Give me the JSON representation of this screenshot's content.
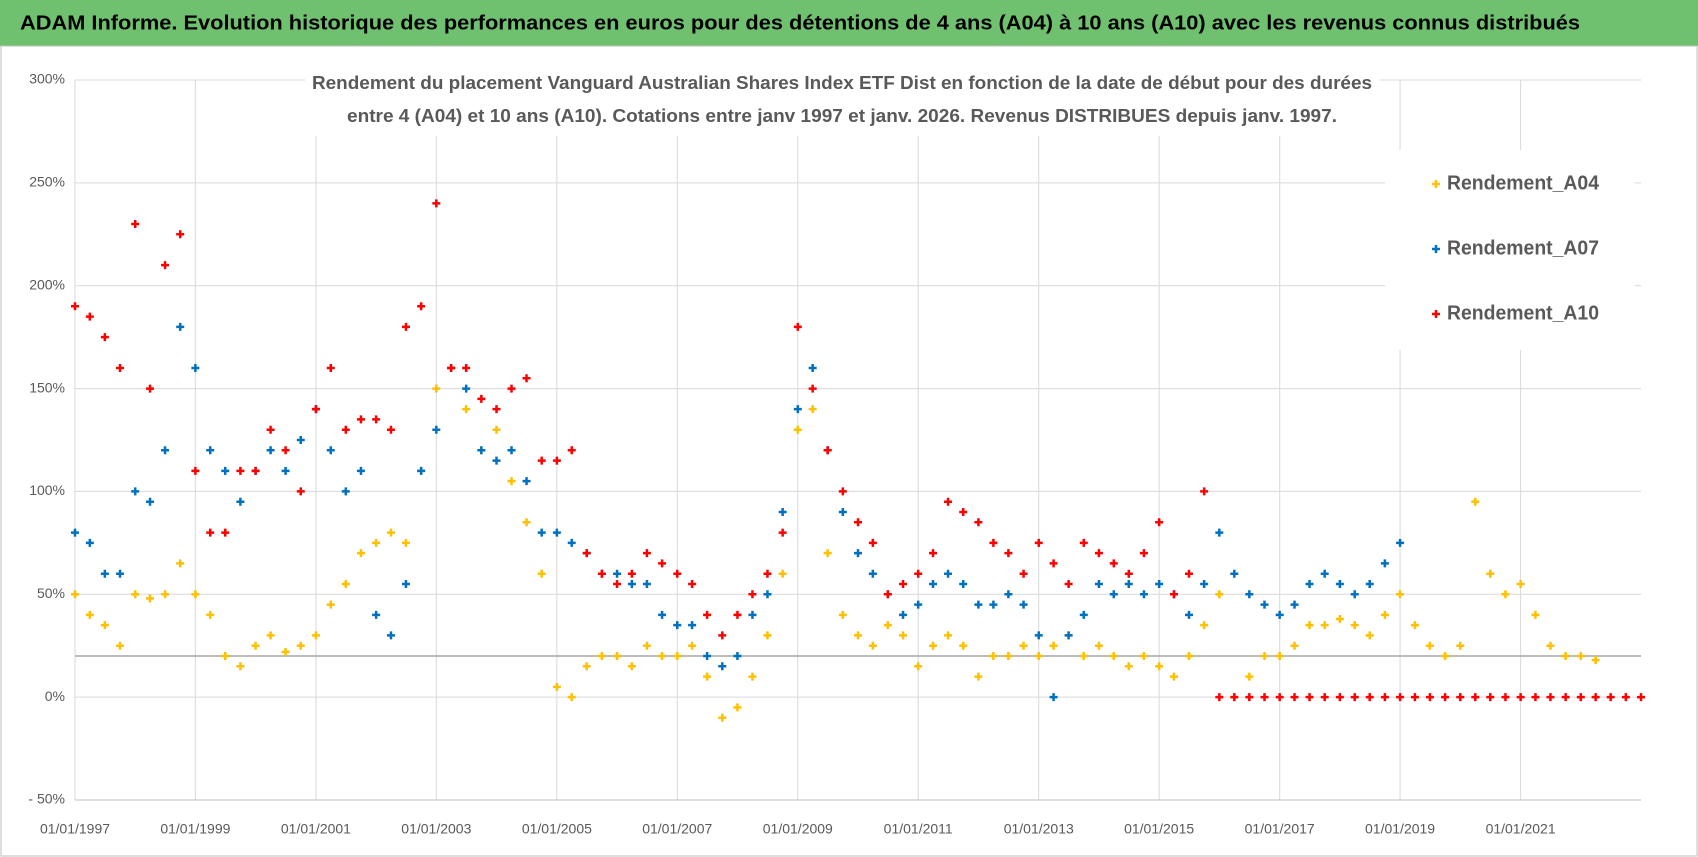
{
  "header": {
    "title": "ADAM Informe. Evolution historique des performances en euros pour des détentions de 4 ans (A04) à 10 ans (A10) avec les revenus connus distribués"
  },
  "chart_data": {
    "type": "scatter",
    "title": [
      "Rendement du placement Vanguard Australian Shares Index ETF Dist en fonction de la date de début pour des durées",
      "entre 4 (A04) et 10 ans (A10).  Cotations entre janv 1997 et janv. 2026. Revenus DISTRIBUES depuis janv. 1997."
    ],
    "x": [
      "1997-01-01",
      "1997-04-01",
      "1997-07-01",
      "1997-10-01",
      "1998-01-01",
      "1998-04-01",
      "1998-07-01",
      "1998-10-01",
      "1999-01-01",
      "1999-04-01",
      "1999-07-01",
      "1999-10-01",
      "2000-01-01",
      "2000-04-01",
      "2000-07-01",
      "2000-10-01",
      "2001-01-01",
      "2001-04-01",
      "2001-07-01",
      "2001-10-01",
      "2002-01-01",
      "2002-04-01",
      "2002-07-01",
      "2002-10-01",
      "2003-01-01",
      "2003-04-01",
      "2003-07-01",
      "2003-10-01",
      "2004-01-01",
      "2004-04-01",
      "2004-07-01",
      "2004-10-01",
      "2005-01-01",
      "2005-04-01",
      "2005-07-01",
      "2005-10-01",
      "2006-01-01",
      "2006-04-01",
      "2006-07-01",
      "2006-10-01",
      "2007-01-01",
      "2007-04-01",
      "2007-07-01",
      "2007-10-01",
      "2008-01-01",
      "2008-04-01",
      "2008-07-01",
      "2008-10-01",
      "2009-01-01",
      "2009-04-01",
      "2009-07-01",
      "2009-10-01",
      "2010-01-01",
      "2010-04-01",
      "2010-07-01",
      "2010-10-01",
      "2011-01-01",
      "2011-04-01",
      "2011-07-01",
      "2011-10-01",
      "2012-01-01",
      "2012-04-01",
      "2012-07-01",
      "2012-10-01",
      "2013-01-01",
      "2013-04-01",
      "2013-07-01",
      "2013-10-01",
      "2014-01-01",
      "2014-04-01",
      "2014-07-01",
      "2014-10-01",
      "2015-01-01",
      "2015-04-01",
      "2015-07-01",
      "2015-10-01",
      "2016-01-01",
      "2016-04-01",
      "2016-07-01",
      "2016-10-01",
      "2017-01-01",
      "2017-04-01",
      "2017-07-01",
      "2017-10-01",
      "2018-01-01",
      "2018-04-01",
      "2018-07-01",
      "2018-10-01",
      "2019-01-01",
      "2019-04-01",
      "2019-07-01",
      "2019-10-01",
      "2020-01-01",
      "2020-04-01",
      "2020-07-01",
      "2020-10-01",
      "2021-01-01",
      "2021-04-01",
      "2021-07-01",
      "2021-10-01",
      "2022-01-01",
      "2022-04-01",
      "2022-07-01",
      "2022-10-01",
      "2023-01-01"
    ],
    "series": [
      {
        "name": "Rendement_A04",
        "color": "#ffc000",
        "values": [
          50,
          40,
          35,
          25,
          50,
          48,
          50,
          65,
          50,
          40,
          20,
          15,
          25,
          30,
          22,
          25,
          30,
          45,
          55,
          70,
          75,
          80,
          75,
          110,
          150,
          160,
          140,
          120,
          130,
          105,
          85,
          60,
          5,
          0,
          15,
          20,
          20,
          15,
          25,
          20,
          20,
          25,
          10,
          -10,
          -5,
          10,
          30,
          60,
          130,
          140,
          70,
          40,
          30,
          25,
          35,
          30,
          15,
          25,
          30,
          25,
          10,
          20,
          20,
          25,
          20,
          25,
          30,
          20,
          25,
          20,
          15,
          20,
          15,
          10,
          20,
          35,
          50,
          0,
          10,
          20,
          20,
          25,
          35,
          35,
          38,
          35,
          30,
          40,
          50,
          35,
          25,
          20,
          25,
          95,
          60,
          50,
          55,
          40,
          25,
          20,
          20,
          18,
          null,
          null,
          null
        ]
      },
      {
        "name": "Rendement_A07",
        "color": "#0070c0",
        "values": [
          80,
          75,
          60,
          60,
          100,
          95,
          120,
          180,
          160,
          120,
          110,
          95,
          110,
          120,
          110,
          125,
          140,
          120,
          100,
          110,
          40,
          30,
          55,
          110,
          130,
          160,
          150,
          120,
          115,
          120,
          105,
          80,
          80,
          75,
          70,
          60,
          60,
          55,
          55,
          40,
          35,
          35,
          20,
          15,
          20,
          40,
          50,
          90,
          140,
          160,
          120,
          90,
          70,
          60,
          50,
          40,
          45,
          55,
          60,
          55,
          45,
          45,
          50,
          45,
          30,
          0,
          30,
          40,
          55,
          50,
          55,
          50,
          55,
          50,
          40,
          55,
          80,
          60,
          50,
          45,
          40,
          45,
          55,
          60,
          55,
          50,
          55,
          65,
          75,
          null,
          null,
          null,
          null,
          null,
          null,
          null,
          null,
          null,
          null,
          null,
          null,
          null,
          null,
          null,
          null
        ]
      },
      {
        "name": "Rendement_A10",
        "color": "#ff0000",
        "values": [
          190,
          185,
          175,
          160,
          230,
          150,
          210,
          225,
          110,
          80,
          80,
          110,
          110,
          130,
          120,
          100,
          140,
          160,
          130,
          135,
          135,
          130,
          180,
          190,
          240,
          160,
          160,
          145,
          140,
          150,
          155,
          115,
          115,
          120,
          70,
          60,
          55,
          60,
          70,
          65,
          60,
          55,
          40,
          30,
          40,
          50,
          60,
          80,
          180,
          150,
          120,
          100,
          85,
          75,
          50,
          55,
          60,
          70,
          95,
          90,
          85,
          75,
          70,
          60,
          75,
          65,
          55,
          75,
          70,
          65,
          60,
          70,
          85,
          50,
          60,
          100,
          0,
          0,
          0,
          0,
          0,
          0,
          0,
          0,
          0,
          0,
          0,
          0,
          0,
          0,
          0,
          0,
          0,
          0,
          0,
          0,
          0,
          0,
          0,
          0,
          0,
          0,
          0,
          0,
          0
        ]
      }
    ],
    "xlim": [
      "1997-01-01",
      "2023-01-01"
    ],
    "xticks": [
      {
        "value": "1997-01-01",
        "label": "01/01/1997"
      },
      {
        "value": "1999-01-01",
        "label": "01/01/1999"
      },
      {
        "value": "2001-01-01",
        "label": "01/01/2001"
      },
      {
        "value": "2003-01-01",
        "label": "01/01/2003"
      },
      {
        "value": "2005-01-01",
        "label": "01/01/2005"
      },
      {
        "value": "2007-01-01",
        "label": "01/01/2007"
      },
      {
        "value": "2009-01-01",
        "label": "01/01/2009"
      },
      {
        "value": "2011-01-01",
        "label": "01/01/2011"
      },
      {
        "value": "2013-01-01",
        "label": "01/01/2013"
      },
      {
        "value": "2015-01-01",
        "label": "01/01/2015"
      },
      {
        "value": "2017-01-01",
        "label": "01/01/2017"
      },
      {
        "value": "2019-01-01",
        "label": "01/01/2019"
      },
      {
        "value": "2021-01-01",
        "label": "01/01/2021"
      }
    ],
    "ylim": [
      -50,
      300
    ],
    "yticks": [
      {
        "value": -50,
        "label": "- 50%"
      },
      {
        "value": 0,
        "label": "0%"
      },
      {
        "value": 50,
        "label": "50%"
      },
      {
        "value": 100,
        "label": "100%"
      },
      {
        "value": 150,
        "label": "150%"
      },
      {
        "value": 200,
        "label": "200%"
      },
      {
        "value": 250,
        "label": "250%"
      },
      {
        "value": 300,
        "label": "300%"
      }
    ],
    "reference_y": 20,
    "grid": true,
    "legend": "right"
  }
}
